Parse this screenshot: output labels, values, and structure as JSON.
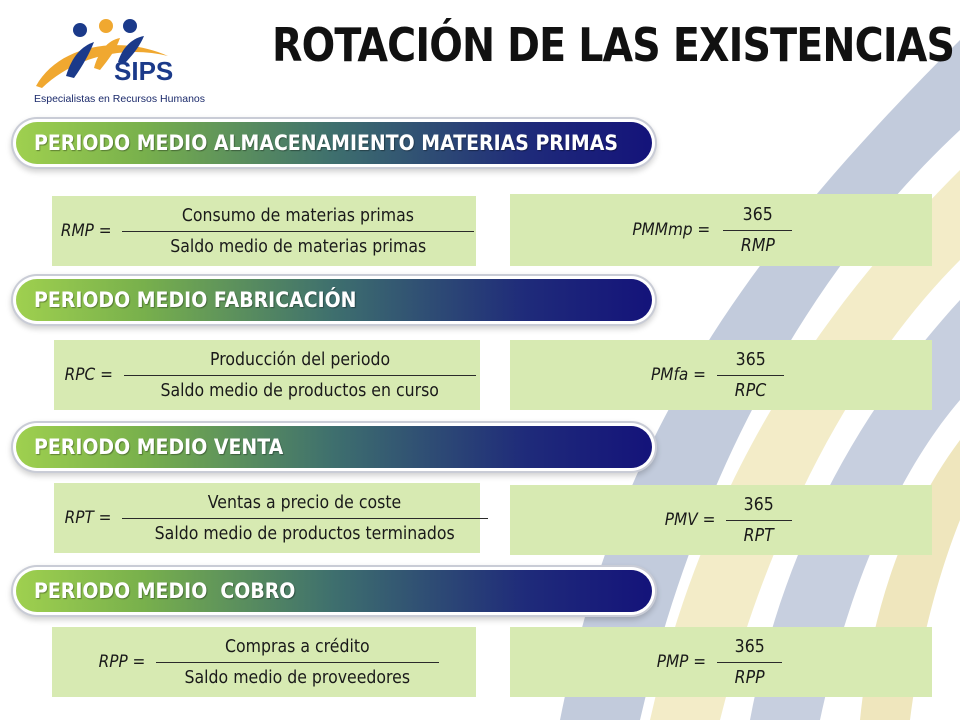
{
  "logo": {
    "brand": "SIPS",
    "tagline": "Especialistas en Recursos Humanos"
  },
  "title": "ROTACIÓN DE LAS EXISTENCIAS",
  "sections": [
    {
      "heading": "PERIODO MEDIO ALMACENAMIENTO MATERIAS PRIMAS",
      "ratio": {
        "lhs": "RMP =",
        "numerator": "Consumo de materias primas",
        "denominator": "Saldo medio de materias primas"
      },
      "period": {
        "lhs": "PMMmp =",
        "numerator": "365",
        "denominator": "RMP"
      }
    },
    {
      "heading": "PERIODO MEDIO FABRICACIÓN",
      "ratio": {
        "lhs": "RPC =",
        "numerator": "Producción del periodo",
        "denominator": "Saldo medio de productos en curso"
      },
      "period": {
        "lhs": "PMfa =",
        "numerator": "365",
        "denominator": "RPC"
      }
    },
    {
      "heading": "PERIODO MEDIO VENTA",
      "ratio": {
        "lhs": "RPT =",
        "numerator": "Ventas a precio de coste",
        "denominator": "Saldo medio de productos terminados"
      },
      "period": {
        "lhs": "PMV =",
        "numerator": "365",
        "denominator": "RPT"
      }
    },
    {
      "heading": "PERIODO MEDIO  COBRO",
      "ratio": {
        "lhs": "RPP =",
        "numerator": "Compras a crédito",
        "denominator": "Saldo medio de proveedores"
      },
      "period": {
        "lhs": "PMP =",
        "numerator": "365",
        "denominator": "RPP"
      }
    }
  ],
  "colors": {
    "formula_box": "#d7eab2",
    "band_start": "#9fd04f",
    "band_end": "#14137a",
    "swoosh_blue": "#b9c3d6",
    "swoosh_yellow": "#f2eac6"
  }
}
